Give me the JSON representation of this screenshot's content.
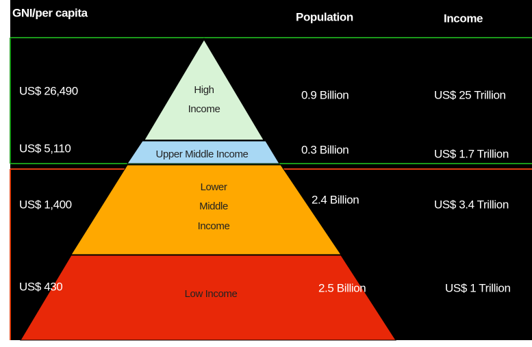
{
  "header": {
    "gni": "GNI/per capita",
    "population": "Population",
    "income": "Income"
  },
  "tiers": [
    {
      "label": [
        "High",
        "Income"
      ],
      "gni": "US$ 26,490",
      "population": "0.9 Billion",
      "income": "US$ 25 Trillion"
    },
    {
      "label": [
        "Upper  Middle Income"
      ],
      "gni": "US$ 5,110",
      "population": "0.3 Billion",
      "income": "US$ 1.7 Trillion"
    },
    {
      "label": [
        "Lower",
        "Middle",
        "Income"
      ],
      "gni": "US$ 1,400",
      "population": "2.4 Billion",
      "income": "US$ 3.4 Trillion"
    },
    {
      "label": [
        "Low Income"
      ],
      "gni": "US$ 430",
      "population": "2.5 Billion",
      "income": "US$ 1 Trillion"
    }
  ]
}
